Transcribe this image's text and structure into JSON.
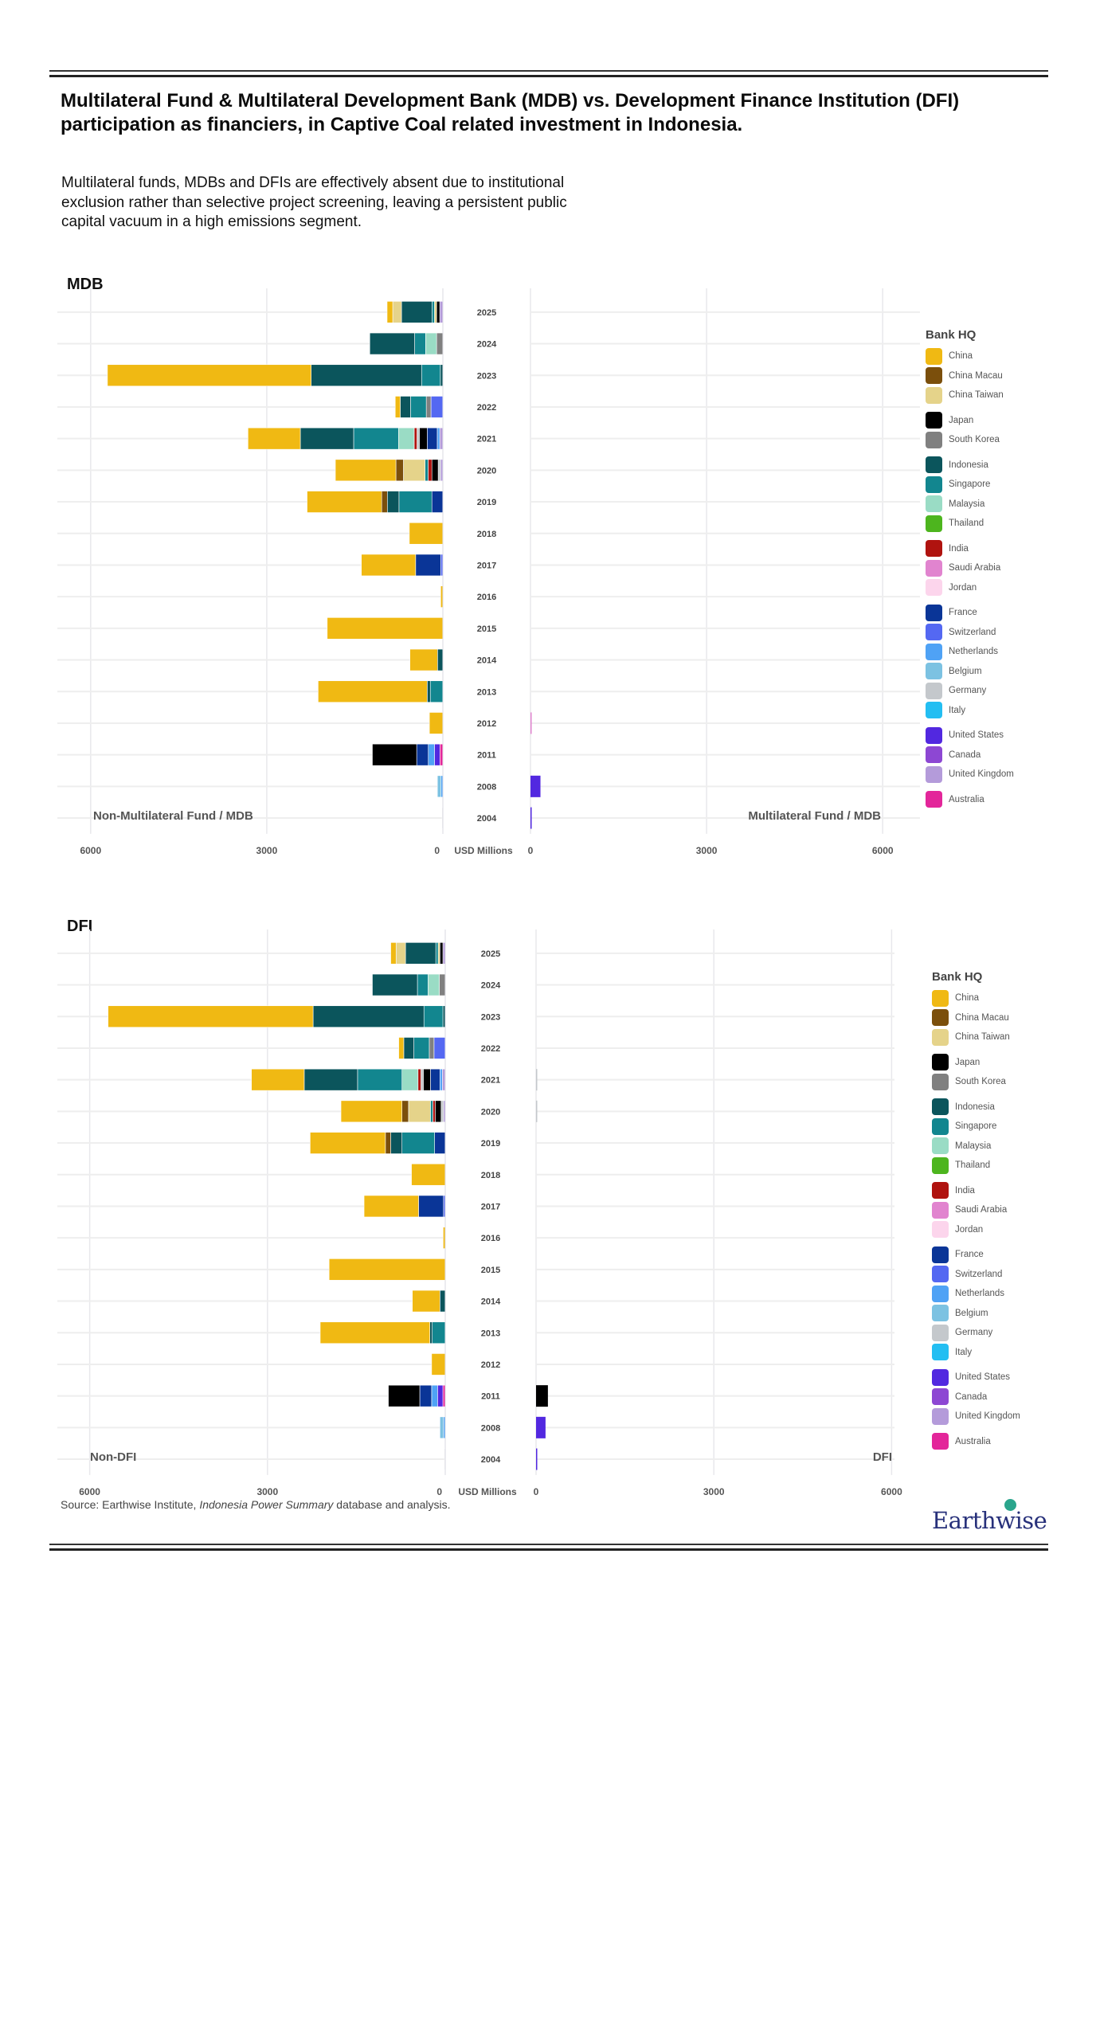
{
  "page": {
    "title": "Multilateral Fund & Multilateral Development Bank (MDB)  vs. Development Finance Institution (DFI) participation as financiers, in Captive Coal related investment in Indonesia.",
    "subtitle": "Multilateral funds, MDBs and DFIs are effectively absent due to institutional exclusion rather than selective project screening, leaving a persistent public capital vacuum in a high emissions segment.",
    "source_prefix": "Source: Earthwise Institute, ",
    "source_italic": "Indonesia Power Summary",
    "source_suffix": " database and analysis.",
    "logo_text": "Earthwise"
  },
  "legend": {
    "title": "Bank HQ",
    "items": [
      {
        "name": "China",
        "color": "#F0B913",
        "group_start": true
      },
      {
        "name": "China Macau",
        "color": "#7B4F0C"
      },
      {
        "name": "China Taiwan",
        "color": "#E5D38A"
      },
      {
        "name": "Japan",
        "color": "#000000",
        "group_start": true
      },
      {
        "name": "South Korea",
        "color": "#808080"
      },
      {
        "name": "Indonesia",
        "color": "#0B555C",
        "group_start": true
      },
      {
        "name": "Singapore",
        "color": "#12868F"
      },
      {
        "name": "Malaysia",
        "color": "#9ADCC5"
      },
      {
        "name": "Thailand",
        "color": "#4DB51E"
      },
      {
        "name": "India",
        "color": "#B0130F",
        "group_start": true
      },
      {
        "name": "Saudi Arabia",
        "color": "#E184CF"
      },
      {
        "name": "Jordan",
        "color": "#FCD5EC"
      },
      {
        "name": "France",
        "color": "#0A3597",
        "group_start": true
      },
      {
        "name": "Switzerland",
        "color": "#5468F2"
      },
      {
        "name": "Netherlands",
        "color": "#4FA2F5"
      },
      {
        "name": "Belgium",
        "color": "#7CC2E2"
      },
      {
        "name": "Germany",
        "color": "#C4C8CC"
      },
      {
        "name": "Italy",
        "color": "#23BEF2"
      },
      {
        "name": "United States",
        "color": "#5228E0",
        "group_start": true
      },
      {
        "name": "Canada",
        "color": "#8D47D3"
      },
      {
        "name": "United Kingdom",
        "color": "#B49BDA"
      },
      {
        "name": "Australia",
        "color": "#E3269A",
        "group_start": true
      }
    ]
  },
  "chart_data": [
    {
      "type": "bar",
      "orientation": "horizontal-diverging-stacked",
      "title": "MDB",
      "xlabel": "USD Millions",
      "left_label": "Non-Multilateral Fund / MDB",
      "right_label": "Multilateral Fund / MDB",
      "xlim_left": [
        6000,
        0
      ],
      "xlim_right": [
        0,
        6000
      ],
      "x_ticks_left": [
        "6000",
        "3000",
        "0"
      ],
      "x_ticks_right": [
        "0",
        "3000",
        "6000"
      ],
      "x_tick_values": [
        6000,
        3000,
        0
      ],
      "grid": true,
      "legend_position": "right",
      "categories": [
        "2025",
        "2024",
        "2023",
        "2022",
        "2021",
        "2020",
        "2019",
        "2018",
        "2017",
        "2016",
        "2015",
        "2014",
        "2013",
        "2012",
        "2011",
        "2008",
        "2004"
      ],
      "left": [
        [
          [
            "China",
            96
          ],
          [
            "China Taiwan",
            150
          ],
          [
            "Indonesia",
            518
          ],
          [
            "Singapore",
            43
          ],
          [
            "China Taiwan",
            37
          ],
          [
            "Japan",
            53
          ],
          [
            "United Kingdom",
            53
          ]
        ],
        [
          [
            "Indonesia",
            764
          ],
          [
            "Singapore",
            187
          ],
          [
            "Malaysia",
            187
          ],
          [
            "South Korea",
            107
          ]
        ],
        [
          [
            "China",
            3471
          ],
          [
            "Indonesia",
            1880
          ],
          [
            "Singapore",
            320
          ],
          [
            "Indonesia",
            43
          ]
        ],
        [
          [
            "China",
            85
          ],
          [
            "Indonesia",
            176
          ],
          [
            "Singapore",
            267
          ],
          [
            "South Korea",
            80
          ],
          [
            "Switzerland",
            203
          ]
        ],
        [
          [
            "China",
            892
          ],
          [
            "Indonesia",
            908
          ],
          [
            "Singapore",
            764
          ],
          [
            "Malaysia",
            267
          ],
          [
            "India",
            48
          ],
          [
            "Germany",
            40
          ],
          [
            "Japan",
            134
          ],
          [
            "France",
            171
          ],
          [
            "Netherlands",
            43
          ],
          [
            "United Kingdom",
            53
          ]
        ],
        [
          [
            "China",
            1031
          ],
          [
            "China Macau",
            128
          ],
          [
            "China Taiwan",
            368
          ],
          [
            "Singapore",
            53
          ],
          [
            "India",
            64
          ],
          [
            "Japan",
            107
          ],
          [
            "Germany",
            40
          ],
          [
            "United Kingdom",
            40
          ]
        ],
        [
          [
            "China",
            1271
          ],
          [
            "China Macau",
            96
          ],
          [
            "Indonesia",
            198
          ],
          [
            "Singapore",
            561
          ],
          [
            "France",
            187
          ]
        ],
        [
          [
            "China",
            571
          ]
        ],
        [
          [
            "China",
            924
          ],
          [
            "France",
            427
          ],
          [
            "Switzerland",
            37
          ]
        ],
        [
          [
            "China",
            37
          ]
        ],
        [
          [
            "China",
            1970
          ]
        ],
        [
          [
            "China",
            470
          ],
          [
            "Indonesia",
            91
          ]
        ],
        [
          [
            "China",
            1858
          ],
          [
            "Indonesia",
            53
          ],
          [
            "Singapore",
            214
          ]
        ],
        [
          [
            "China",
            229
          ]
        ],
        [
          [
            "Japan",
            755
          ],
          [
            "France",
            198
          ],
          [
            "Netherlands",
            105
          ],
          [
            "United States",
            93
          ],
          [
            "Australia",
            50
          ]
        ],
        [
          [
            "Belgium",
            62
          ],
          [
            "Netherlands",
            31
          ]
        ],
        [
          [
            "Germany",
            5
          ]
        ]
      ],
      "right": [
        [],
        [],
        [],
        [],
        [],
        [],
        [],
        [],
        [],
        [],
        [],
        [],
        [],
        [
          [
            "Saudi Arabia",
            5
          ]
        ],
        [],
        [
          [
            "United States",
            170
          ]
        ],
        [
          [
            "United States",
            15
          ]
        ]
      ]
    },
    {
      "type": "bar",
      "orientation": "horizontal-diverging-stacked",
      "title": "DFI",
      "xlabel": "USD Millions",
      "left_label": "Non-DFI",
      "right_label": "DFI",
      "xlim_left": [
        6000,
        0
      ],
      "xlim_right": [
        0,
        6000
      ],
      "x_ticks_left": [
        "6000",
        "3000",
        "0"
      ],
      "x_ticks_right": [
        "0",
        "3000",
        "6000"
      ],
      "x_tick_values": [
        6000,
        3000,
        0
      ],
      "grid": true,
      "legend_position": "right",
      "categories": [
        "2025",
        "2024",
        "2023",
        "2022",
        "2021",
        "2020",
        "2019",
        "2018",
        "2017",
        "2016",
        "2015",
        "2014",
        "2013",
        "2012",
        "2011",
        "2008",
        "2004"
      ],
      "left": [
        [
          [
            "China",
            90
          ],
          [
            "China Taiwan",
            160
          ],
          [
            "Indonesia",
            510
          ],
          [
            "Singapore",
            40
          ],
          [
            "China Taiwan",
            30
          ],
          [
            "Japan",
            50
          ],
          [
            "United Kingdom",
            40
          ]
        ],
        [
          [
            "Indonesia",
            760
          ],
          [
            "Singapore",
            180
          ],
          [
            "Malaysia",
            190
          ],
          [
            "South Korea",
            100
          ]
        ],
        [
          [
            "China",
            3460
          ],
          [
            "Indonesia",
            1870
          ],
          [
            "Singapore",
            320
          ],
          [
            "Indonesia",
            40
          ]
        ],
        [
          [
            "China",
            85
          ],
          [
            "Indonesia",
            170
          ],
          [
            "Singapore",
            260
          ],
          [
            "South Korea",
            80
          ],
          [
            "Switzerland",
            190
          ]
        ],
        [
          [
            "China",
            890
          ],
          [
            "Indonesia",
            900
          ],
          [
            "Singapore",
            750
          ],
          [
            "Malaysia",
            270
          ],
          [
            "India",
            50
          ],
          [
            "Germany",
            40
          ],
          [
            "Japan",
            120
          ],
          [
            "France",
            160
          ],
          [
            "Netherlands",
            40
          ],
          [
            "United Kingdom",
            50
          ]
        ],
        [
          [
            "China",
            1030
          ],
          [
            "China Macau",
            110
          ],
          [
            "China Taiwan",
            370
          ],
          [
            "Singapore",
            40
          ],
          [
            "India",
            40
          ],
          [
            "Japan",
            100
          ],
          [
            "Germany",
            40
          ],
          [
            "United Kingdom",
            30
          ]
        ],
        [
          [
            "China",
            1270
          ],
          [
            "China Macau",
            90
          ],
          [
            "Indonesia",
            190
          ],
          [
            "Singapore",
            550
          ],
          [
            "France",
            180
          ]
        ],
        [
          [
            "China",
            570
          ]
        ],
        [
          [
            "China",
            920
          ],
          [
            "France",
            420
          ],
          [
            "Switzerland",
            30
          ]
        ],
        [
          [
            "China",
            35
          ]
        ],
        [
          [
            "China",
            1960
          ]
        ],
        [
          [
            "China",
            465
          ],
          [
            "Indonesia",
            90
          ]
        ],
        [
          [
            "China",
            1850
          ],
          [
            "Indonesia",
            40
          ],
          [
            "Singapore",
            220
          ]
        ],
        [
          [
            "China",
            230
          ]
        ],
        [
          [
            "Japan",
            530
          ],
          [
            "France",
            200
          ],
          [
            "Netherlands",
            100
          ],
          [
            "United States",
            90
          ],
          [
            "Australia",
            40
          ]
        ],
        [
          [
            "Belgium",
            60
          ],
          [
            "Netherlands",
            30
          ]
        ],
        [
          [
            "Germany",
            5
          ]
        ]
      ],
      "right": [
        [],
        [],
        [],
        [],
        [
          [
            "Germany",
            12
          ]
        ],
        [
          [
            "Germany",
            12
          ]
        ],
        [],
        [],
        [],
        [],
        [],
        [],
        [],
        [],
        [
          [
            "Japan",
            200
          ]
        ],
        [
          [
            "United States",
            160
          ]
        ],
        [
          [
            "United States",
            10
          ]
        ]
      ]
    }
  ]
}
